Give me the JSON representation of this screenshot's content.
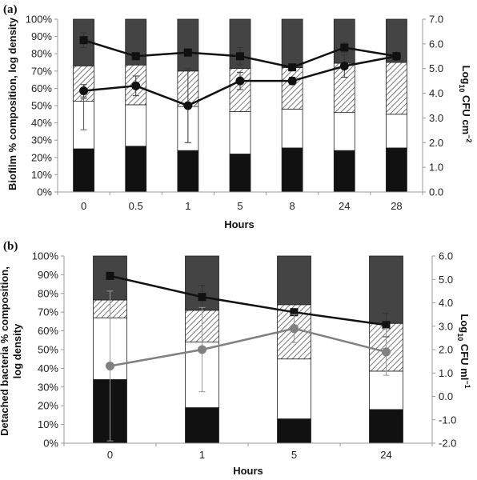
{
  "chart_data": [
    {
      "panel_label": "(a)",
      "type": "bar",
      "stacking": "stacked-percent",
      "categories": [
        "0",
        "0.5",
        "1",
        "5",
        "8",
        "24",
        "28"
      ],
      "xlabel": "Hours",
      "ylabel": "Biofilm % composition, log density",
      "ylim": [
        0,
        100
      ],
      "y_ticks": [
        "0%",
        "10%",
        "20%",
        "30%",
        "40%",
        "50%",
        "60%",
        "70%",
        "80%",
        "90%",
        "100%"
      ],
      "y2label_main": "Log",
      "y2label_sub": "10",
      "y2label_rest": " CFU cm",
      "y2label_sup": "−2",
      "y2lim": [
        0,
        7
      ],
      "y2_ticks": [
        "0.0",
        "1.0",
        "2.0",
        "3.0",
        "4.0",
        "5.0",
        "6.0",
        "7.0"
      ],
      "grid": false,
      "stack_segments": [
        {
          "fill": "#111111",
          "values": [
            25,
            26.5,
            24,
            22,
            25.5,
            24,
            25.5
          ]
        },
        {
          "fill": "#ffffff",
          "values": [
            27.5,
            24,
            25.5,
            24.5,
            22.5,
            22,
            19.5
          ]
        },
        {
          "fill": "hatch",
          "values": [
            20.5,
            23,
            20.5,
            25,
            24,
            28.5,
            30
          ]
        },
        {
          "fill": "#444444",
          "values": [
            27,
            26.5,
            30,
            28.5,
            28,
            25.5,
            25
          ]
        }
      ],
      "line_series": [
        {
          "marker": "square",
          "color": "#111111",
          "values": [
            6.15,
            5.5,
            5.65,
            5.5,
            5.05,
            5.85,
            5.5
          ],
          "err": [
            0.3,
            0.1,
            0.15,
            0.35,
            0.1,
            0.2,
            0.1
          ]
        },
        {
          "marker": "circle",
          "color": "#111111",
          "values": [
            4.1,
            4.3,
            3.5,
            4.5,
            4.5,
            5.1,
            5.5
          ],
          "err": [
            0.25,
            0.4,
            1.5,
            0.35,
            0.15,
            0.45,
            0.1
          ]
        }
      ],
      "error_bars": [
        {
          "x_index": 0,
          "center": 45,
          "low": 36,
          "high": 54
        }
      ]
    },
    {
      "panel_label": "(b)",
      "type": "bar",
      "stacking": "stacked-percent",
      "categories": [
        "0",
        "1",
        "5",
        "24"
      ],
      "xlabel": "Hours",
      "ylabel_line1": "Detached bacteria % composition,",
      "ylabel_line2": "log density",
      "ylim": [
        0,
        100
      ],
      "y_ticks": [
        "0%",
        "10%",
        "20%",
        "30%",
        "40%",
        "50%",
        "60%",
        "70%",
        "80%",
        "90%",
        "100%"
      ],
      "y2label_main": "Log",
      "y2label_sub": "10",
      "y2label_rest": " CFU ml",
      "y2label_sup": "−1",
      "y2lim": [
        -2,
        6
      ],
      "y2_ticks": [
        "-2.0",
        "-1.0",
        "0.0",
        "1.0",
        "2.0",
        "3.0",
        "4.0",
        "5.0",
        "6.0"
      ],
      "grid": false,
      "stack_segments": [
        {
          "fill": "#111111",
          "values": [
            34,
            19,
            13,
            18
          ]
        },
        {
          "fill": "#ffffff",
          "values": [
            33,
            35,
            32,
            20.5
          ]
        },
        {
          "fill": "hatch",
          "values": [
            9.5,
            17,
            29,
            25.5
          ]
        },
        {
          "fill": "#444444",
          "values": [
            23.5,
            29,
            26,
            36
          ]
        }
      ],
      "line_series": [
        {
          "marker": "square",
          "color": "#111111",
          "values": [
            5.15,
            4.25,
            3.6,
            3.05
          ],
          "err": [
            0,
            0.5,
            0.1,
            0.5
          ]
        },
        {
          "marker": "circle",
          "color": "#808080",
          "values": [
            1.3,
            2.0,
            2.9,
            1.9
          ],
          "err": [
            3.2,
            1.8,
            0.6,
            1.0
          ]
        }
      ]
    }
  ]
}
